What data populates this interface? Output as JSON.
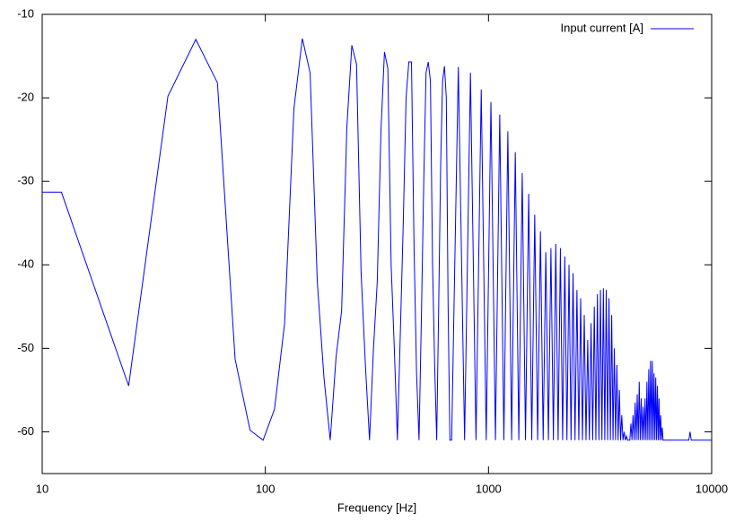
{
  "chart_data": {
    "type": "line",
    "x_label": "Frequency [Hz]",
    "log_x": true,
    "legend": "top right",
    "xlim": [
      10,
      10000
    ],
    "xticks": [
      10,
      100,
      1000,
      10000
    ],
    "ylim": [
      -65,
      -10
    ],
    "yticks": [
      -10,
      -20,
      -30,
      -40,
      -50,
      -60
    ],
    "x": [
      10,
      12.2,
      24.4,
      36.6,
      48.8,
      61,
      73.2,
      85.4,
      97.7,
      109.9,
      122,
      134.3,
      146.5,
      158.7,
      170.9,
      183.1,
      195.3,
      207.5,
      219.7,
      231.9,
      244.1,
      256.3,
      268.6,
      280.8,
      293,
      305.2,
      317.4,
      329.6,
      341.8,
      354,
      366.2,
      378.4,
      390.6,
      402.8,
      415,
      427.2,
      439.5,
      451.7,
      463.9,
      476,
      488.3,
      500.5,
      512.7,
      524.9,
      537.1,
      549.3,
      561.5,
      573.7,
      585.9,
      598,
      610.4,
      622.6,
      634.8,
      647,
      659.2,
      671.4,
      683.6,
      732.4,
      781.3,
      830.1,
      878.9,
      927.7,
      976.6,
      1025.4,
      1074.2,
      1123,
      1171.9,
      1220.7,
      1269.5,
      1318.4,
      1367.2,
      1416,
      1464.8,
      1513.7,
      1562.5,
      1611.3,
      1660.2,
      1709,
      1757.8,
      1806.6,
      1855.5,
      1904.3,
      1953.1,
      2001.9,
      2050.8,
      2099.6,
      2148.4,
      2197.3,
      2246.1,
      2294.9,
      2343.8,
      2392.6,
      2441.4,
      2490.2,
      2539.1,
      2587.9,
      2636.7,
      2685.5,
      2734.4,
      2783.2,
      2832,
      2880.9,
      2929.7,
      2978.5,
      3027.3,
      3076.2,
      3125,
      3173.8,
      3222.7,
      3271.5,
      3320.3,
      3369.1,
      3418,
      3466.8,
      3515.6,
      3564.5,
      3613.3,
      3662.1,
      3710.9,
      3759.8,
      3808.6,
      3857.4,
      3906.3,
      3955.1,
      4003.9,
      4052.7,
      4101.6,
      4150.4,
      4199.2,
      4248,
      4296.9,
      4345.7,
      4394.5,
      4443.4,
      4492.2,
      4541,
      4589.8,
      4638.7,
      4687.5,
      4736.3,
      4785.2,
      4834,
      4882.8,
      4931.6,
      4980.5,
      5029.3,
      5078.1,
      5127,
      5175.8,
      5224.6,
      5273.4,
      5322.3,
      5371.1,
      5419.9,
      5468.8,
      5517.6,
      5566.4,
      5615.2,
      5664.1,
      5712.9,
      5761.7,
      5810.5,
      5859.4,
      5908.2,
      5957,
      6005.9,
      6054.7,
      6103.5,
      7900,
      8000,
      8100,
      10000
    ],
    "series": [
      {
        "name": "Input current [A]",
        "color": "#0000ff",
        "values": [
          -31.3,
          -31.3,
          -54.5,
          -19.8,
          -13,
          -18.2,
          -51.3,
          -59.8,
          -61,
          -57.3,
          -47,
          -21.3,
          -12.9,
          -17,
          -42,
          -53.5,
          -61,
          -51,
          -45.5,
          -23.5,
          -13.7,
          -16,
          -41,
          -52,
          -61,
          -50,
          -42,
          -24,
          -14.5,
          -16.5,
          -40,
          -50,
          -61,
          -48,
          -35,
          -20,
          -15.7,
          -15.7,
          -38,
          -53,
          -61,
          -46,
          -30,
          -17,
          -15.7,
          -18,
          -40,
          -52,
          -61,
          -45,
          -28,
          -18,
          -16.2,
          -20,
          -45,
          -61,
          -61,
          -16.3,
          -61,
          -17,
          -61,
          -19,
          -61,
          -20.5,
          -61,
          -22,
          -61,
          -24,
          -61,
          -26.5,
          -61,
          -29,
          -61,
          -31.5,
          -61,
          -34,
          -61,
          -36,
          -61,
          -38.5,
          -61,
          -38,
          -61,
          -37.5,
          -61,
          -38,
          -61,
          -39,
          -61,
          -40,
          -61,
          -41,
          -61,
          -43,
          -61,
          -44,
          -61,
          -46,
          -61,
          -49,
          -61,
          -47,
          -61,
          -45,
          -61,
          -43.5,
          -61,
          -43,
          -61,
          -42.8,
          -61,
          -43,
          -61,
          -44,
          -61,
          -46,
          -61,
          -50,
          -61,
          -52,
          -61,
          -55,
          -61,
          -58,
          -61,
          -60,
          -61,
          -60.5,
          -61,
          -61,
          -61,
          -59,
          -61,
          -58,
          -61,
          -56.5,
          -61,
          -55.5,
          -61,
          -54,
          -61,
          -56,
          -61,
          -57,
          -61,
          -56,
          -61,
          -54,
          -61,
          -52.5,
          -61,
          -51.5,
          -61,
          -51.5,
          -61,
          -53,
          -61,
          -53.5,
          -61,
          -54.5,
          -61,
          -56,
          -61,
          -58,
          -61,
          -59.5,
          -61,
          -61,
          -61,
          -60,
          -61,
          -61
        ]
      }
    ]
  }
}
